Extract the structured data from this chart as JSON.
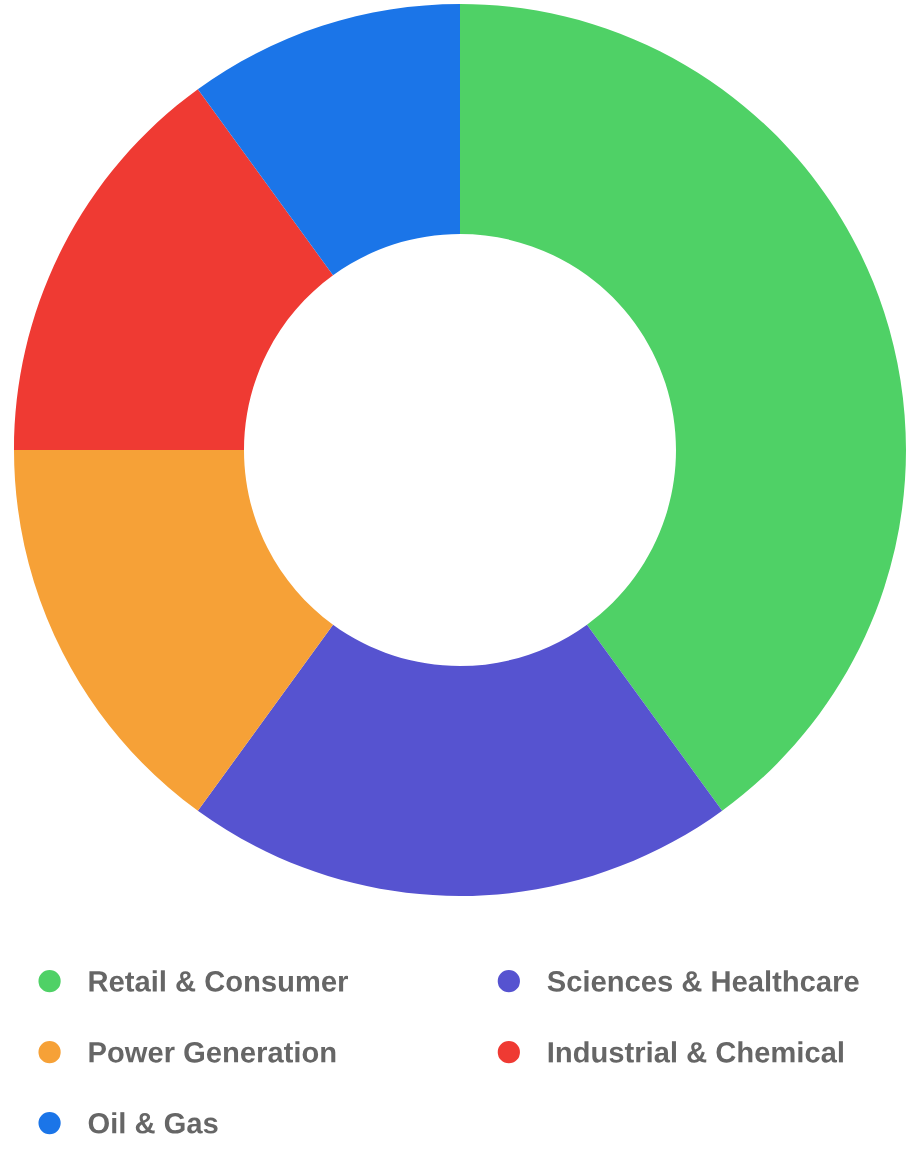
{
  "chart_data": {
    "type": "donut",
    "categories": [
      "Retail & Consumer",
      "Sciences & Healthcare",
      "Power Generation",
      "Industrial & Chemical",
      "Oil & Gas"
    ],
    "values": [
      40,
      20,
      15,
      15,
      10
    ],
    "colors": [
      "#4fd166",
      "#5653d0",
      "#f6a137",
      "#ef3a33",
      "#1b75e8"
    ],
    "legend": "bottom"
  }
}
